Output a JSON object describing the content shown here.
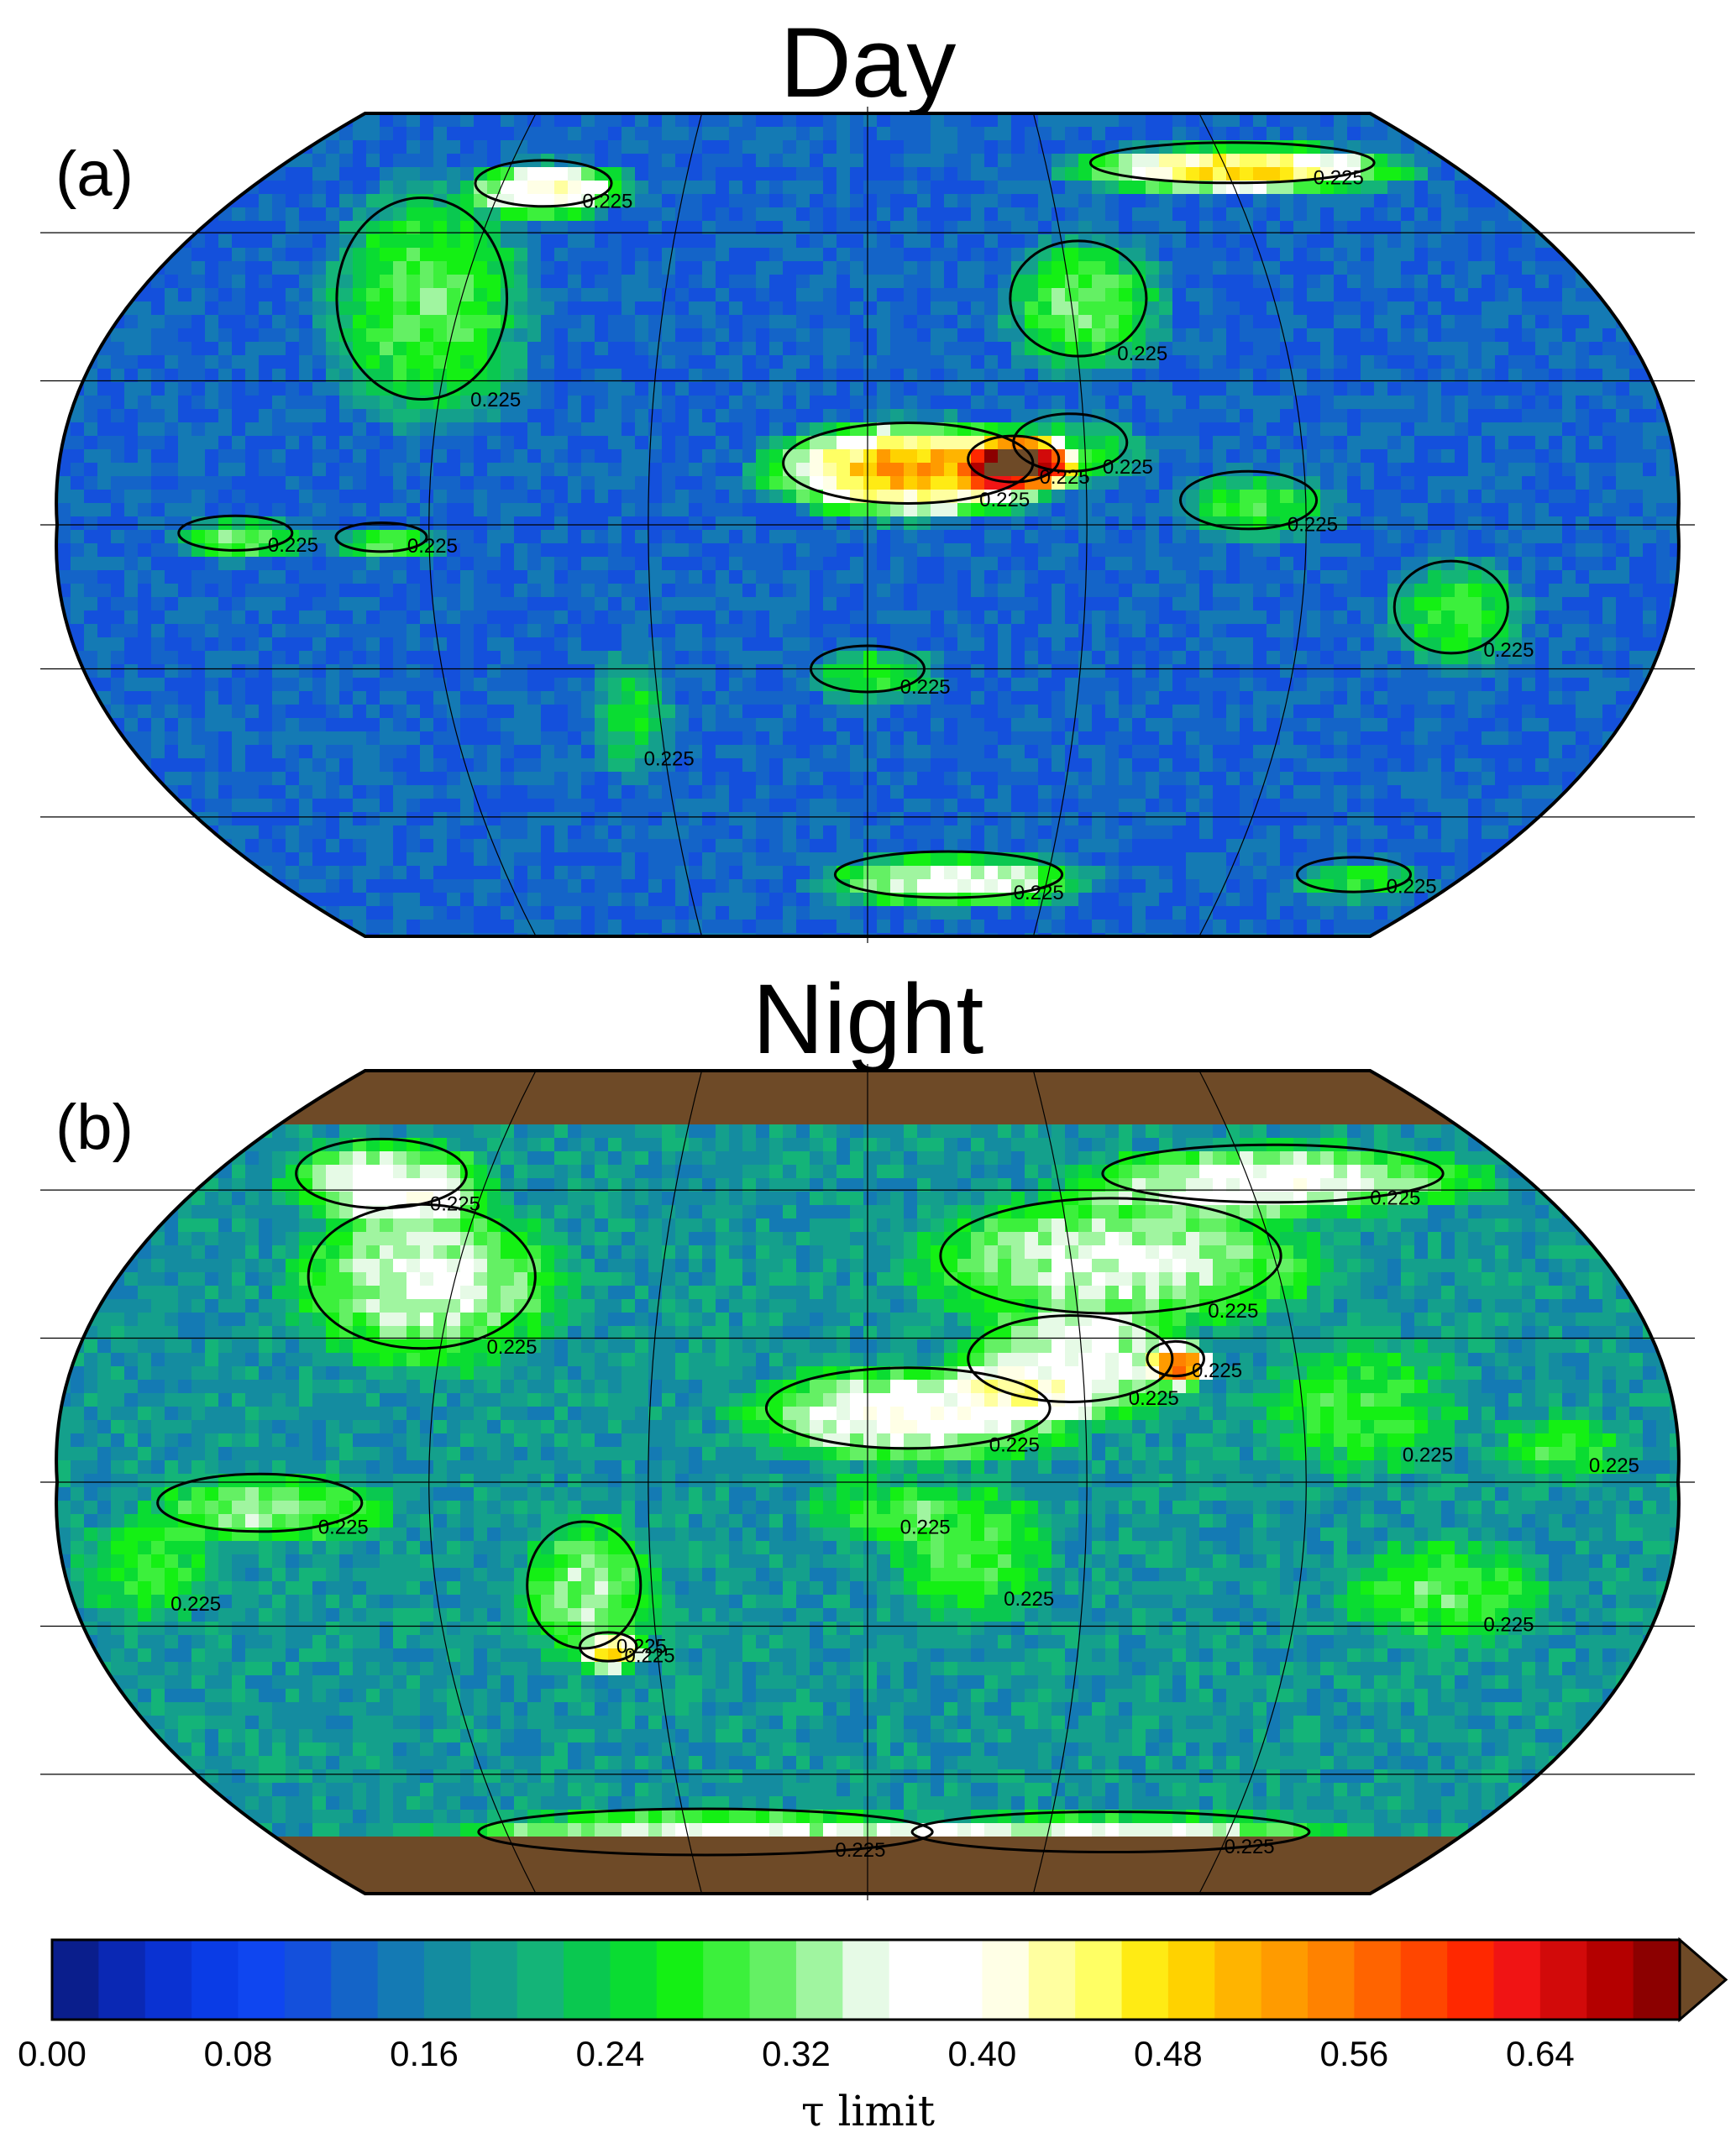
{
  "panels": [
    {
      "title": "Day",
      "letter": "(a)",
      "contour_labels": [
        "0.225",
        "0.225",
        "0.225",
        "0.225",
        "0.225",
        "0.225",
        "0.225",
        "0.225",
        "0.225",
        "0.225",
        "0.225",
        "0.225",
        "0.225",
        "0.225",
        "0.225"
      ]
    },
    {
      "title": "Night",
      "letter": "(b)",
      "contour_labels": [
        "0.225",
        "0.225",
        "0.225",
        "0.225",
        "0.225",
        "0.225",
        "0.225",
        "0.225",
        "0.225",
        "0.225",
        "0.225",
        "0.225",
        "0.225",
        "0.225",
        "0.225",
        "0.225",
        "0.225",
        "0.225"
      ]
    }
  ],
  "colorbar": {
    "label": "τ  limit",
    "ticks": [
      "0.00",
      "0.08",
      "0.16",
      "0.24",
      "0.32",
      "0.40",
      "0.48",
      "0.56",
      "0.64"
    ],
    "range": [
      0.0,
      0.7
    ],
    "step": 0.02,
    "overflow_color": "#6e4a27",
    "colors": [
      "#0a1e8c",
      "#0a28b4",
      "#0a32d2",
      "#0a3ce6",
      "#0f46f0",
      "#1450dc",
      "#1464c8",
      "#147ab4",
      "#148ca0",
      "#14a08c",
      "#14b478",
      "#0ac850",
      "#0adc32",
      "#14f014",
      "#3cf03c",
      "#64f064",
      "#a0f5a0",
      "#e6fae6",
      "#ffffff",
      "#ffffff",
      "#ffffe6",
      "#ffffa0",
      "#ffff64",
      "#ffeb14",
      "#ffd200",
      "#ffb400",
      "#ff9b00",
      "#ff8200",
      "#ff6400",
      "#ff4600",
      "#ff2800",
      "#f01414",
      "#d20a0a",
      "#b40000",
      "#8c0000"
    ],
    "note_colors": {
      "land_ice": "#6e4a27",
      "missing": "#a0a0a0"
    }
  }
}
